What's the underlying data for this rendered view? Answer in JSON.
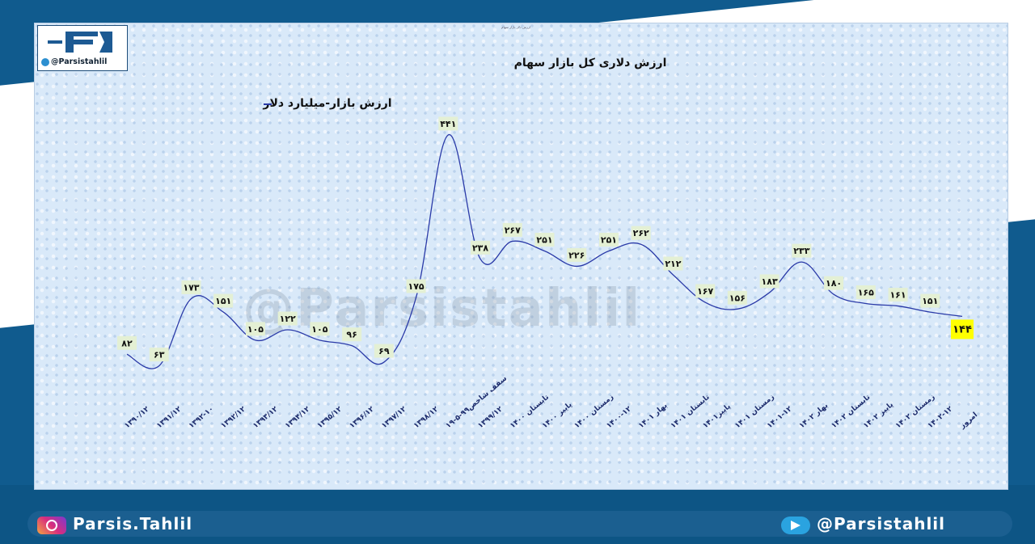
{
  "header": {
    "tiny_caption": "ارزش دلار بازار سهام",
    "title": "ارزش دلاری کل بازار سهام",
    "logo_handle": "@Parsistahlil",
    "watermark": "@Parsistahlil"
  },
  "footer": {
    "instagram": "Parsis.Tahlil",
    "telegram": "@Parsistahlil"
  },
  "colors": {
    "line": "#2a3aa8",
    "label_bg": "#e4f0d4",
    "highlight_bg": "#ffff00"
  },
  "chart_data": {
    "type": "line",
    "title": "ارزش دلاری کل بازار سهام",
    "series": [
      {
        "name": "ارزش بازار-میلیارد دلار",
        "values": [
          82,
          63,
          173,
          151,
          105,
          122,
          105,
          96,
          69,
          175,
          441,
          238,
          267,
          251,
          226,
          251,
          262,
          212,
          167,
          156,
          183,
          233,
          180,
          165,
          161,
          151,
          144
        ],
        "labels": [
          "۸۲",
          "۶۳",
          "۱۷۳",
          "۱۵۱",
          "۱۰۵",
          "۱۲۲",
          "۱۰۵",
          "۹۶",
          "۶۹",
          "۱۷۵",
          "۴۴۱",
          "۲۳۸",
          "۲۶۷",
          "۲۵۱",
          "۲۲۶",
          "۲۵۱",
          "۲۶۲",
          "۲۱۲",
          "۱۶۷",
          "۱۵۶",
          "۱۸۳",
          "۲۳۳",
          "۱۸۰",
          "۱۶۵",
          "۱۶۱",
          "۱۵۱",
          "۱۴۴"
        ]
      }
    ],
    "categories": [
      "۱۳۹۰/۱۲",
      "۱۳۹۱/۱۲",
      "۱۳۹۲-۱۰",
      "۱۳۹۲/۱۲",
      "۱۳۹۳/۱۲",
      "۱۳۹۴/۱۲",
      "۱۳۹۵/۱۲",
      "۱۳۹۶/۱۲",
      "۱۳۹۷/۱۲",
      "۱۳۹۸/۱۲",
      "سقف شاخص۹۹-۵-۱۹",
      "۱۳۹۹/۱۲",
      "تابستان ۱۴۰۰",
      "پاییز ۱۴۰۰",
      "زمستان ۱۴۰۰",
      "۱۴۰۰-۱۲",
      "بهار ۱۴۰۱",
      "تابستان ۱۴۰۱",
      "پاییز۱۴۰۱",
      "زمستان ۱۴۰۱",
      "۱۴۰۱-۱۲",
      "بهار ۱۴۰۲",
      "تابستان ۱۴۰۲",
      "پاییز ۱۴۰۲",
      "زمستان ۱۴۰۲",
      "۱۴۰۲-۱۲",
      "امروز"
    ],
    "highlight_index": 26,
    "ylim": [
      40,
      470
    ],
    "grid": false,
    "legend": "top-left"
  }
}
